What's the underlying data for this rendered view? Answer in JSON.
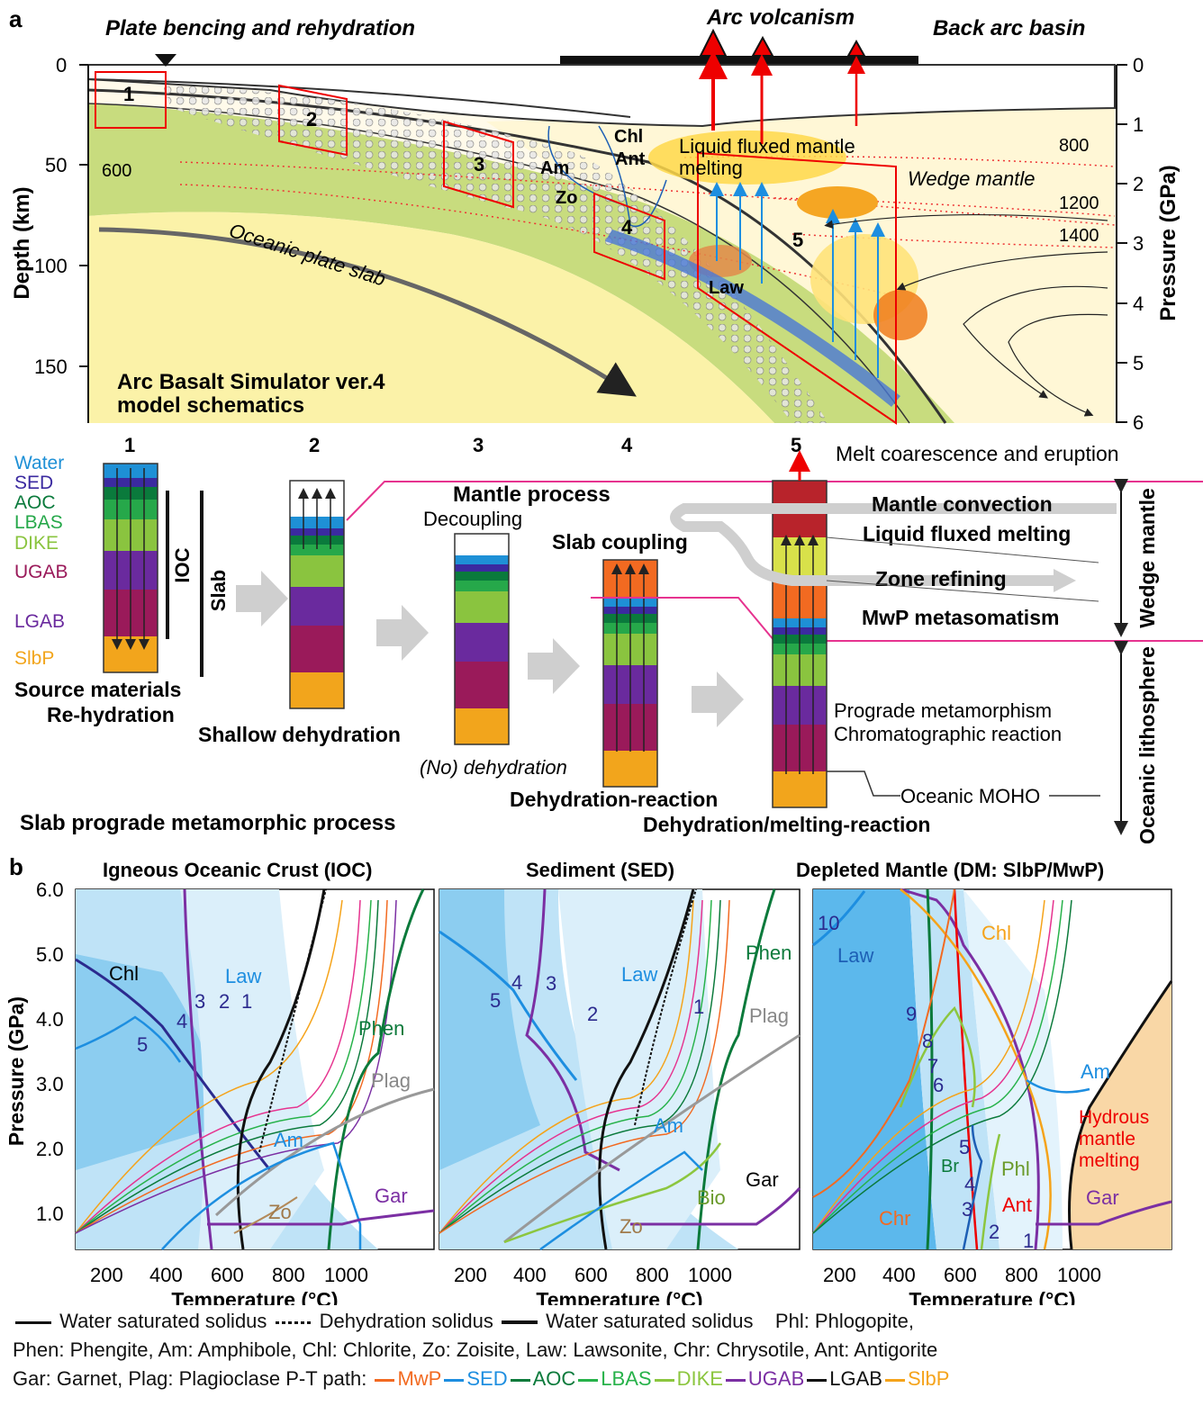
{
  "panel_a": {
    "label": "a",
    "top_titles": {
      "left": "Plate bencing and rehydration",
      "center": "Arc volcanism",
      "right": "Back arc basin"
    },
    "depth_axis": {
      "title": "Depth (km)",
      "ticks": [
        "0",
        "50",
        "100",
        "150"
      ]
    },
    "pressure_axis": {
      "title": "Pressure (GPa)",
      "ticks": [
        "0",
        "1",
        "2",
        "3",
        "4",
        "5",
        "6"
      ]
    },
    "isotherms": [
      "600",
      "800",
      "1200",
      "1400"
    ],
    "labels": {
      "chl": "Chl",
      "am": "Am",
      "ant": "Ant",
      "zo": "Zo",
      "law": "Law",
      "liquid": "Liquid fluxed mantle",
      "melting": "melting",
      "wedge": "Wedge mantle",
      "slab": "Oceanic plate slab"
    },
    "boxes": [
      "1",
      "2",
      "3",
      "4",
      "5"
    ],
    "model_title_1": "Arc Basalt Simulator ver.4",
    "model_title_2": "model schematics"
  },
  "process": {
    "column_numbers": [
      "1",
      "2",
      "3",
      "4",
      "5"
    ],
    "materials": [
      {
        "name": "Water",
        "color": "#1e90d6"
      },
      {
        "name": "SED",
        "color": "#3b2aa0"
      },
      {
        "name": "AOC",
        "color": "#0a7a3c"
      },
      {
        "name": "LBAS",
        "color": "#26a84a"
      },
      {
        "name": "DIKE",
        "color": "#8ac43f"
      },
      {
        "name": "UGAB",
        "color": "#9a1a5a"
      },
      {
        "name": "LGAB",
        "color": "#6a2a9e"
      },
      {
        "name": "SlbP",
        "color": "#f2a51c"
      }
    ],
    "ioc": "IOC",
    "slab": "Slab",
    "source_materials": "Source materials",
    "rehydration": "Re-hydration",
    "shallow_dehydration": "Shallow dehydration",
    "mantle_process": "Mantle process",
    "decoupling": "Decoupling",
    "no_dehydration": "(No) dehydration",
    "slab_coupling": "Slab coupling",
    "dehydration_reaction": "Dehydration-reaction",
    "dehydration_melting": "Dehydration/melting-reaction",
    "melt_eruption": "Melt coarescence and eruption",
    "mantle_convection": "Mantle convection",
    "liquid_fluxed_melting": "Liquid fluxed melting",
    "zone_refining": "Zone refining",
    "mwp_metasomatism": "MwP metasomatism",
    "prograde": "Prograde metamorphism",
    "chromatographic": "Chromatographic reaction",
    "moho": "Oceanic MOHO",
    "wedge_mantle": "Wedge mantle",
    "oceanic_lithosphere": "Oceanic lithosphere",
    "slab_process": "Slab prograde metamorphic process"
  },
  "panel_b": {
    "label": "b",
    "y_axis_title": "Pressure (GPa)",
    "y_ticks": [
      "1.0",
      "2.0",
      "3.0",
      "4.0",
      "5.0",
      "6.0"
    ],
    "x_axis_title": "Temperature (°C)",
    "x_ticks": [
      "200",
      "400",
      "600",
      "800",
      "1000"
    ],
    "plots": [
      {
        "title": "Igneous Oceanic Crust (IOC)",
        "labels": {
          "chl": "Chl",
          "law": "Law",
          "n1": "1",
          "n2": "2",
          "n3": "3",
          "n4": "4",
          "n5": "5",
          "phen": "Phen",
          "plag": "Plag",
          "am": "Am",
          "zo": "Zo",
          "gar": "Gar"
        }
      },
      {
        "title": "Sediment (SED)",
        "labels": {
          "law": "Law",
          "n1": "1",
          "n2": "2",
          "n3": "3",
          "n4": "4",
          "n5": "5",
          "phen": "Phen",
          "plag": "Plag",
          "am": "Am",
          "gar": "Gar",
          "bio": "Bio",
          "zo": "Zo"
        }
      },
      {
        "title": "Depleted Mantle (DM: SlbP/MwP)",
        "labels": {
          "n10": "10",
          "law": "Law",
          "chl": "Chl",
          "n9": "9",
          "n8": "8",
          "n7": "7",
          "n6": "6",
          "n5": "5",
          "n4": "4",
          "n3": "3",
          "n2": "2",
          "n1": "1",
          "br": "Br",
          "phl": "Phl",
          "am": "Am",
          "hyd1": "Hydrous",
          "hyd2": "mantle",
          "hyd3": "melting",
          "gar": "Gar",
          "chr": "Chr",
          "ant": "Ant"
        }
      }
    ]
  },
  "legend": {
    "line1": {
      "wss1": "Water saturated solidus",
      "ds": "Dehydration solidus",
      "wss2": "Water saturated solidus",
      "phl": "Phl: Phlogopite,"
    },
    "line2": "Phen: Phengite, Am: Amphibole, Chl: Chlorite, Zo: Zoisite, Law: Lawsonite, Chr: Chrysotile, Ant: Antigorite",
    "line3_prefix": "Gar: Garnet, Plag: Plagioclase  P-T path: ",
    "paths": [
      {
        "name": "MwP",
        "color": "#f26a21"
      },
      {
        "name": "SED",
        "color": "#1d8ee0"
      },
      {
        "name": "AOC",
        "color": "#0b7a3b"
      },
      {
        "name": "LBAS",
        "color": "#27b24a"
      },
      {
        "name": "DIKE",
        "color": "#8cc63f"
      },
      {
        "name": "UGAB",
        "color": "#7b2fa3"
      },
      {
        "name": "LGAB",
        "color": "#111111"
      },
      {
        "name": "SlbP",
        "color": "#f5a31a"
      }
    ]
  }
}
